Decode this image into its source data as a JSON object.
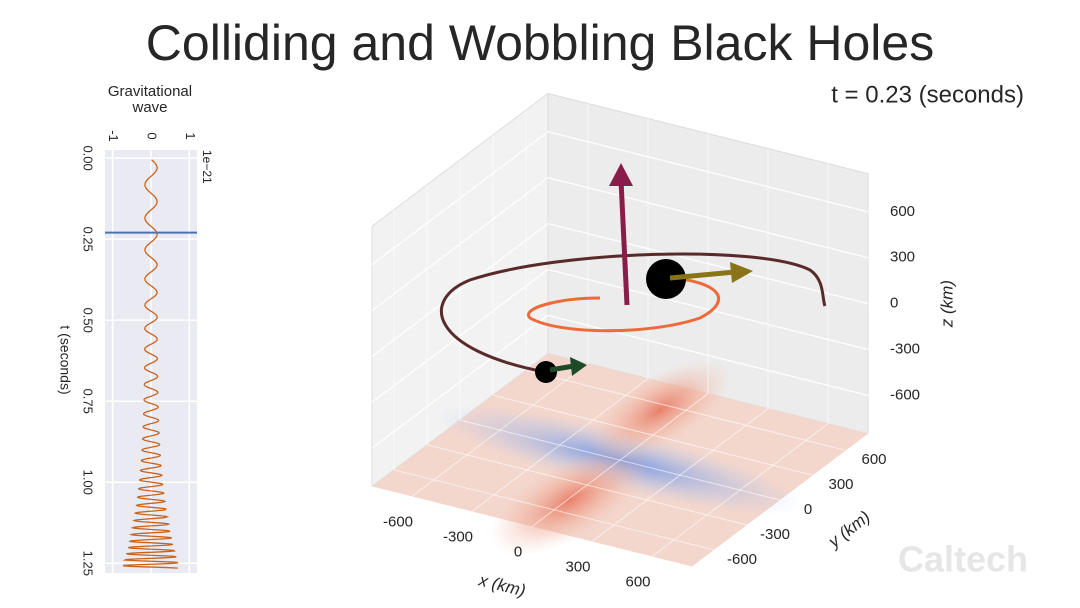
{
  "title": "Colliding and Wobbling Black Holes",
  "time_label": "t = 0.23 (seconds)",
  "watermark": "Caltech",
  "chart_data": [
    {
      "type": "waveform",
      "title": "Gravitational\nwave",
      "xlim": [
        -1.2,
        1.2
      ],
      "xticks": [
        -1,
        0,
        1
      ],
      "x_offset_label": "1e−21",
      "ylim": [
        -0.025,
        1.28
      ],
      "yticks": [
        {
          "value": 0,
          "label": "0.00"
        },
        {
          "value": 0.25,
          "label": "0.25"
        },
        {
          "value": 0.5,
          "label": "0.50"
        },
        {
          "value": 0.75,
          "label": "0.75"
        },
        {
          "value": 1,
          "label": "1.00"
        },
        {
          "value": 1.25,
          "label": "1.25"
        }
      ],
      "ylabel": "t (seconds)",
      "marker": 0.23,
      "color": "#c8641e",
      "marker_color": "#4c72b0"
    },
    {
      "type": "scatter3d",
      "xlabel": "x (km)",
      "ylabel": "y (km)",
      "zlabel": "z (km)",
      "xlim": [
        -800,
        800
      ],
      "ylim": [
        -800,
        800
      ],
      "zlim": [
        -850,
        850
      ],
      "xticks": [
        -600,
        -300,
        0,
        300,
        600
      ],
      "yticks": [
        -600,
        -300,
        0,
        300,
        600
      ],
      "zticks": [
        -600,
        -300,
        0,
        300,
        600
      ]
    }
  ]
}
